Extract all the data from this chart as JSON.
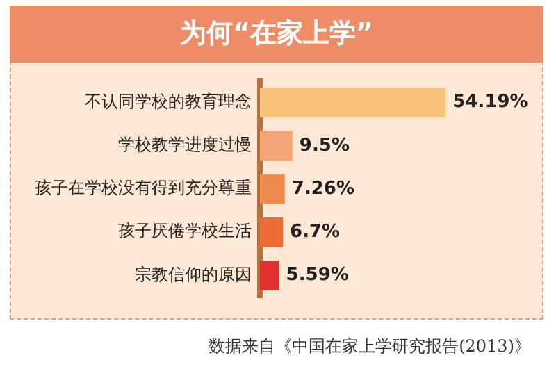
{
  "chart_data": {
    "type": "bar",
    "orientation": "horizontal",
    "title": "为何“在家上学”",
    "categories": [
      "不认同学校的教育理念",
      "学校教学进度过慢",
      "孩子在学校没有得到充分尊重",
      "孩子厌倦学校生活",
      "宗教信仰的原因"
    ],
    "values": [
      54.19,
      9.5,
      7.26,
      6.7,
      5.59
    ],
    "value_labels": [
      "54.19%",
      "9.5%",
      "7.26%",
      "6.7%",
      "5.59%"
    ],
    "colors": [
      "#f7c27a",
      "#f3a577",
      "#ef8a4e",
      "#eb6c34",
      "#e2312f"
    ],
    "annotations": [
      "数据来自《中国在家上学研究报告(2013)》"
    ],
    "legend": false
  }
}
